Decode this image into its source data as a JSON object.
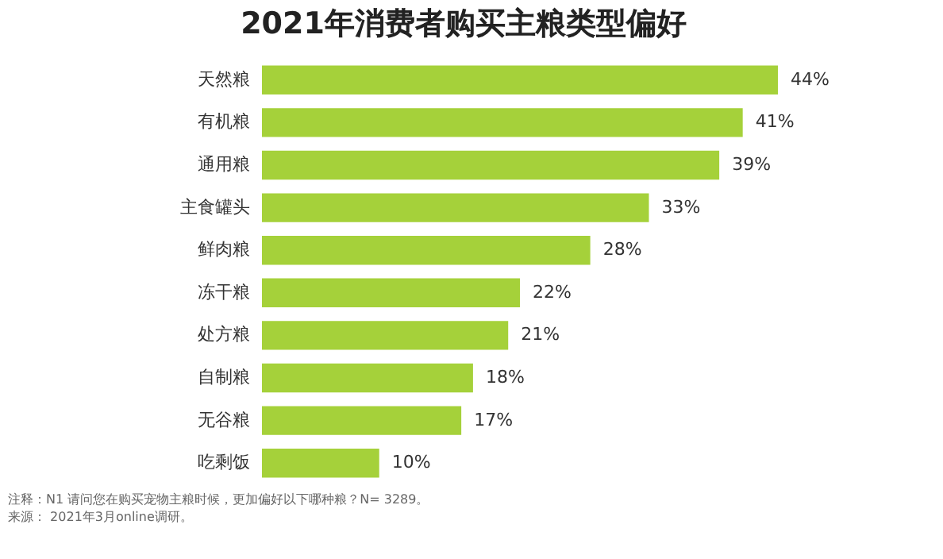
{
  "chart_data": {
    "type": "bar",
    "orientation": "horizontal",
    "title": "2021年消费者购买主粮类型偏好",
    "categories": [
      "天然粮",
      "有机粮",
      "通用粮",
      "主食罐头",
      "鲜肉粮",
      "冻干粮",
      "处方粮",
      "自制粮",
      "无谷粮",
      "吃剩饭"
    ],
    "values": [
      44,
      41,
      39,
      33,
      28,
      22,
      21,
      18,
      17,
      10
    ],
    "value_labels": [
      "44%",
      "41%",
      "39%",
      "33%",
      "28%",
      "22%",
      "21%",
      "18%",
      "17%",
      "10%"
    ],
    "color": "#a5d13a",
    "grid": false,
    "tick_labels": "y",
    "annotations": [
      "注释：N1 请问您在购买宠物主粮时候，更加偏好以下哪种粮？N= 3289。",
      "来源： 2021年3月online调研。"
    ]
  }
}
